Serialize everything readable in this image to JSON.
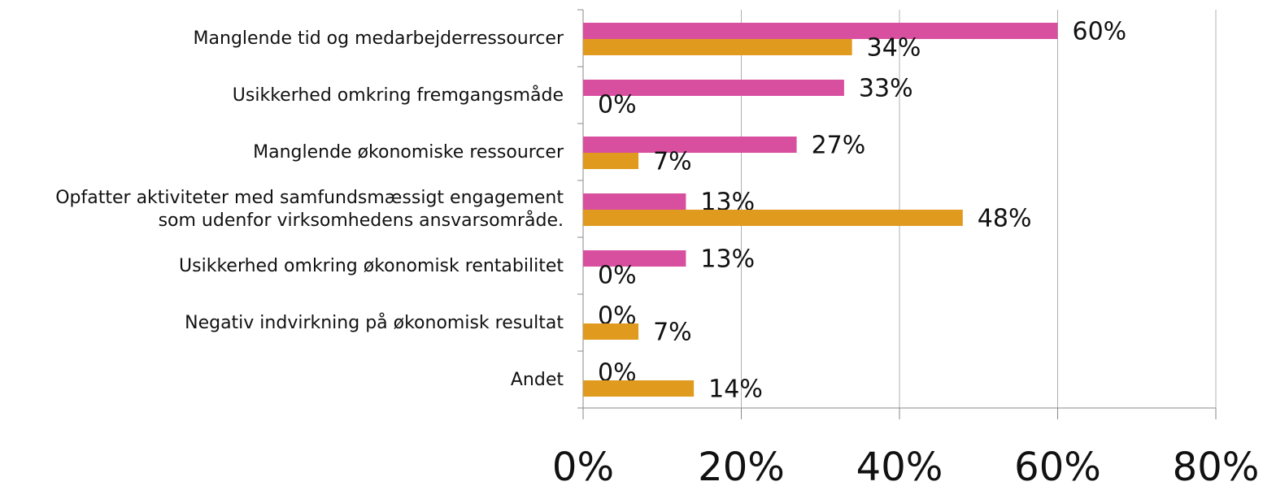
{
  "chart_data": {
    "type": "hbar",
    "categories": [
      "Manglende tid og medarbejderressourcer",
      "Usikkerhed omkring fremgangsmåde",
      "Manglende økonomiske ressourcer",
      "Opfatter aktiviteter med samfundsmæssigt engagement\nsom udenfor virksomhedens ansvarsområde.",
      "Usikkerhed omkring økonomisk rentabilitet",
      "Negativ indvirkning på økonomisk resultat",
      "Andet"
    ],
    "series": [
      {
        "color": "#d94fa0",
        "values": [
          60,
          33,
          27,
          13,
          13,
          0,
          0
        ],
        "value_labels": [
          "60%",
          "33%",
          "27%",
          "13%",
          "13%",
          "0%",
          "0%"
        ]
      },
      {
        "color": "#e09a1e",
        "values": [
          34,
          0,
          7,
          48,
          0,
          7,
          14
        ],
        "value_labels": [
          "34%",
          "0%",
          "7%",
          "48%",
          "0%",
          "7%",
          "14%"
        ]
      }
    ],
    "xlim": [
      0,
      80
    ],
    "xticks": [
      {
        "value": 0,
        "label": "0%"
      },
      {
        "value": 20,
        "label": "20%"
      },
      {
        "value": 40,
        "label": "40%"
      },
      {
        "value": 60,
        "label": "60%"
      },
      {
        "value": 80,
        "label": "80%"
      }
    ],
    "grid": true
  }
}
